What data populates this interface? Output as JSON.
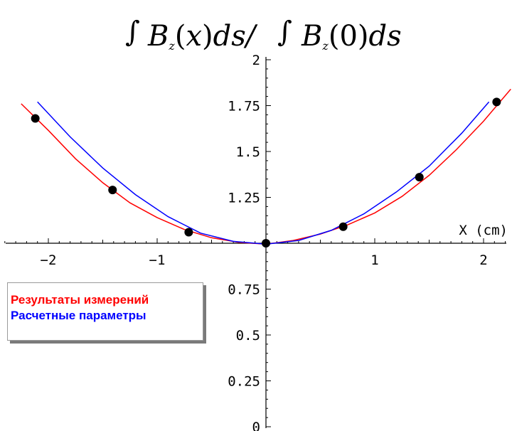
{
  "chart_data": {
    "type": "scatter",
    "title": "∫ B_z(x) ds / ∫ B_z(0) ds",
    "xlabel": "X (cm)",
    "ylabel": "",
    "xlim": [
      -2.4,
      2.25
    ],
    "ylim": [
      0,
      2
    ],
    "x_ticks": [
      -2,
      -1,
      1,
      2
    ],
    "x_tick_labels": [
      "−2",
      "−1",
      "1",
      "2"
    ],
    "y_ticks": [
      0.25,
      0.5,
      0.75,
      1.25,
      1.5,
      1.75,
      2
    ],
    "y_tick_labels": [
      "0.25",
      "0.5",
      "0.75",
      "1.25",
      "1.5",
      "1.75",
      "2"
    ],
    "y_extra_label": "0",
    "series": [
      {
        "name": "Результаты измерений",
        "kind": "points",
        "color": "#000000",
        "x": [
          -2.12,
          -1.41,
          -0.71,
          0.0,
          0.71,
          1.41,
          2.12
        ],
        "y": [
          1.68,
          1.29,
          1.06,
          1.0,
          1.09,
          1.36,
          1.77
        ]
      },
      {
        "name": "Результаты измерений",
        "kind": "line",
        "color": "#ff0000",
        "x": [
          -2.25,
          -2.0,
          -1.75,
          -1.5,
          -1.25,
          -1.0,
          -0.75,
          -0.5,
          -0.25,
          0.0,
          0.25,
          0.5,
          0.75,
          1.0,
          1.25,
          1.5,
          1.75,
          2.0,
          2.25
        ],
        "y": [
          1.76,
          1.615,
          1.46,
          1.33,
          1.22,
          1.14,
          1.075,
          1.03,
          1.005,
          0.995,
          1.015,
          1.05,
          1.1,
          1.165,
          1.255,
          1.37,
          1.51,
          1.665,
          1.84
        ]
      },
      {
        "name": "Расчетные параметры",
        "kind": "line",
        "color": "#0000ff",
        "x": [
          -2.1,
          -1.8,
          -1.5,
          -1.2,
          -0.9,
          -0.6,
          -0.3,
          0.0,
          0.3,
          0.6,
          0.9,
          1.2,
          1.5,
          1.8,
          2.05
        ],
        "y": [
          1.77,
          1.58,
          1.41,
          1.265,
          1.145,
          1.055,
          1.01,
          0.995,
          1.015,
          1.07,
          1.16,
          1.28,
          1.42,
          1.6,
          1.77
        ]
      }
    ],
    "legend": {
      "placement": "left-middle",
      "items": [
        {
          "label": "Результаты измерений",
          "color": "#ff0000"
        },
        {
          "label": "Расчетные параметры",
          "color": "#0000ff"
        }
      ]
    },
    "grid": false
  }
}
